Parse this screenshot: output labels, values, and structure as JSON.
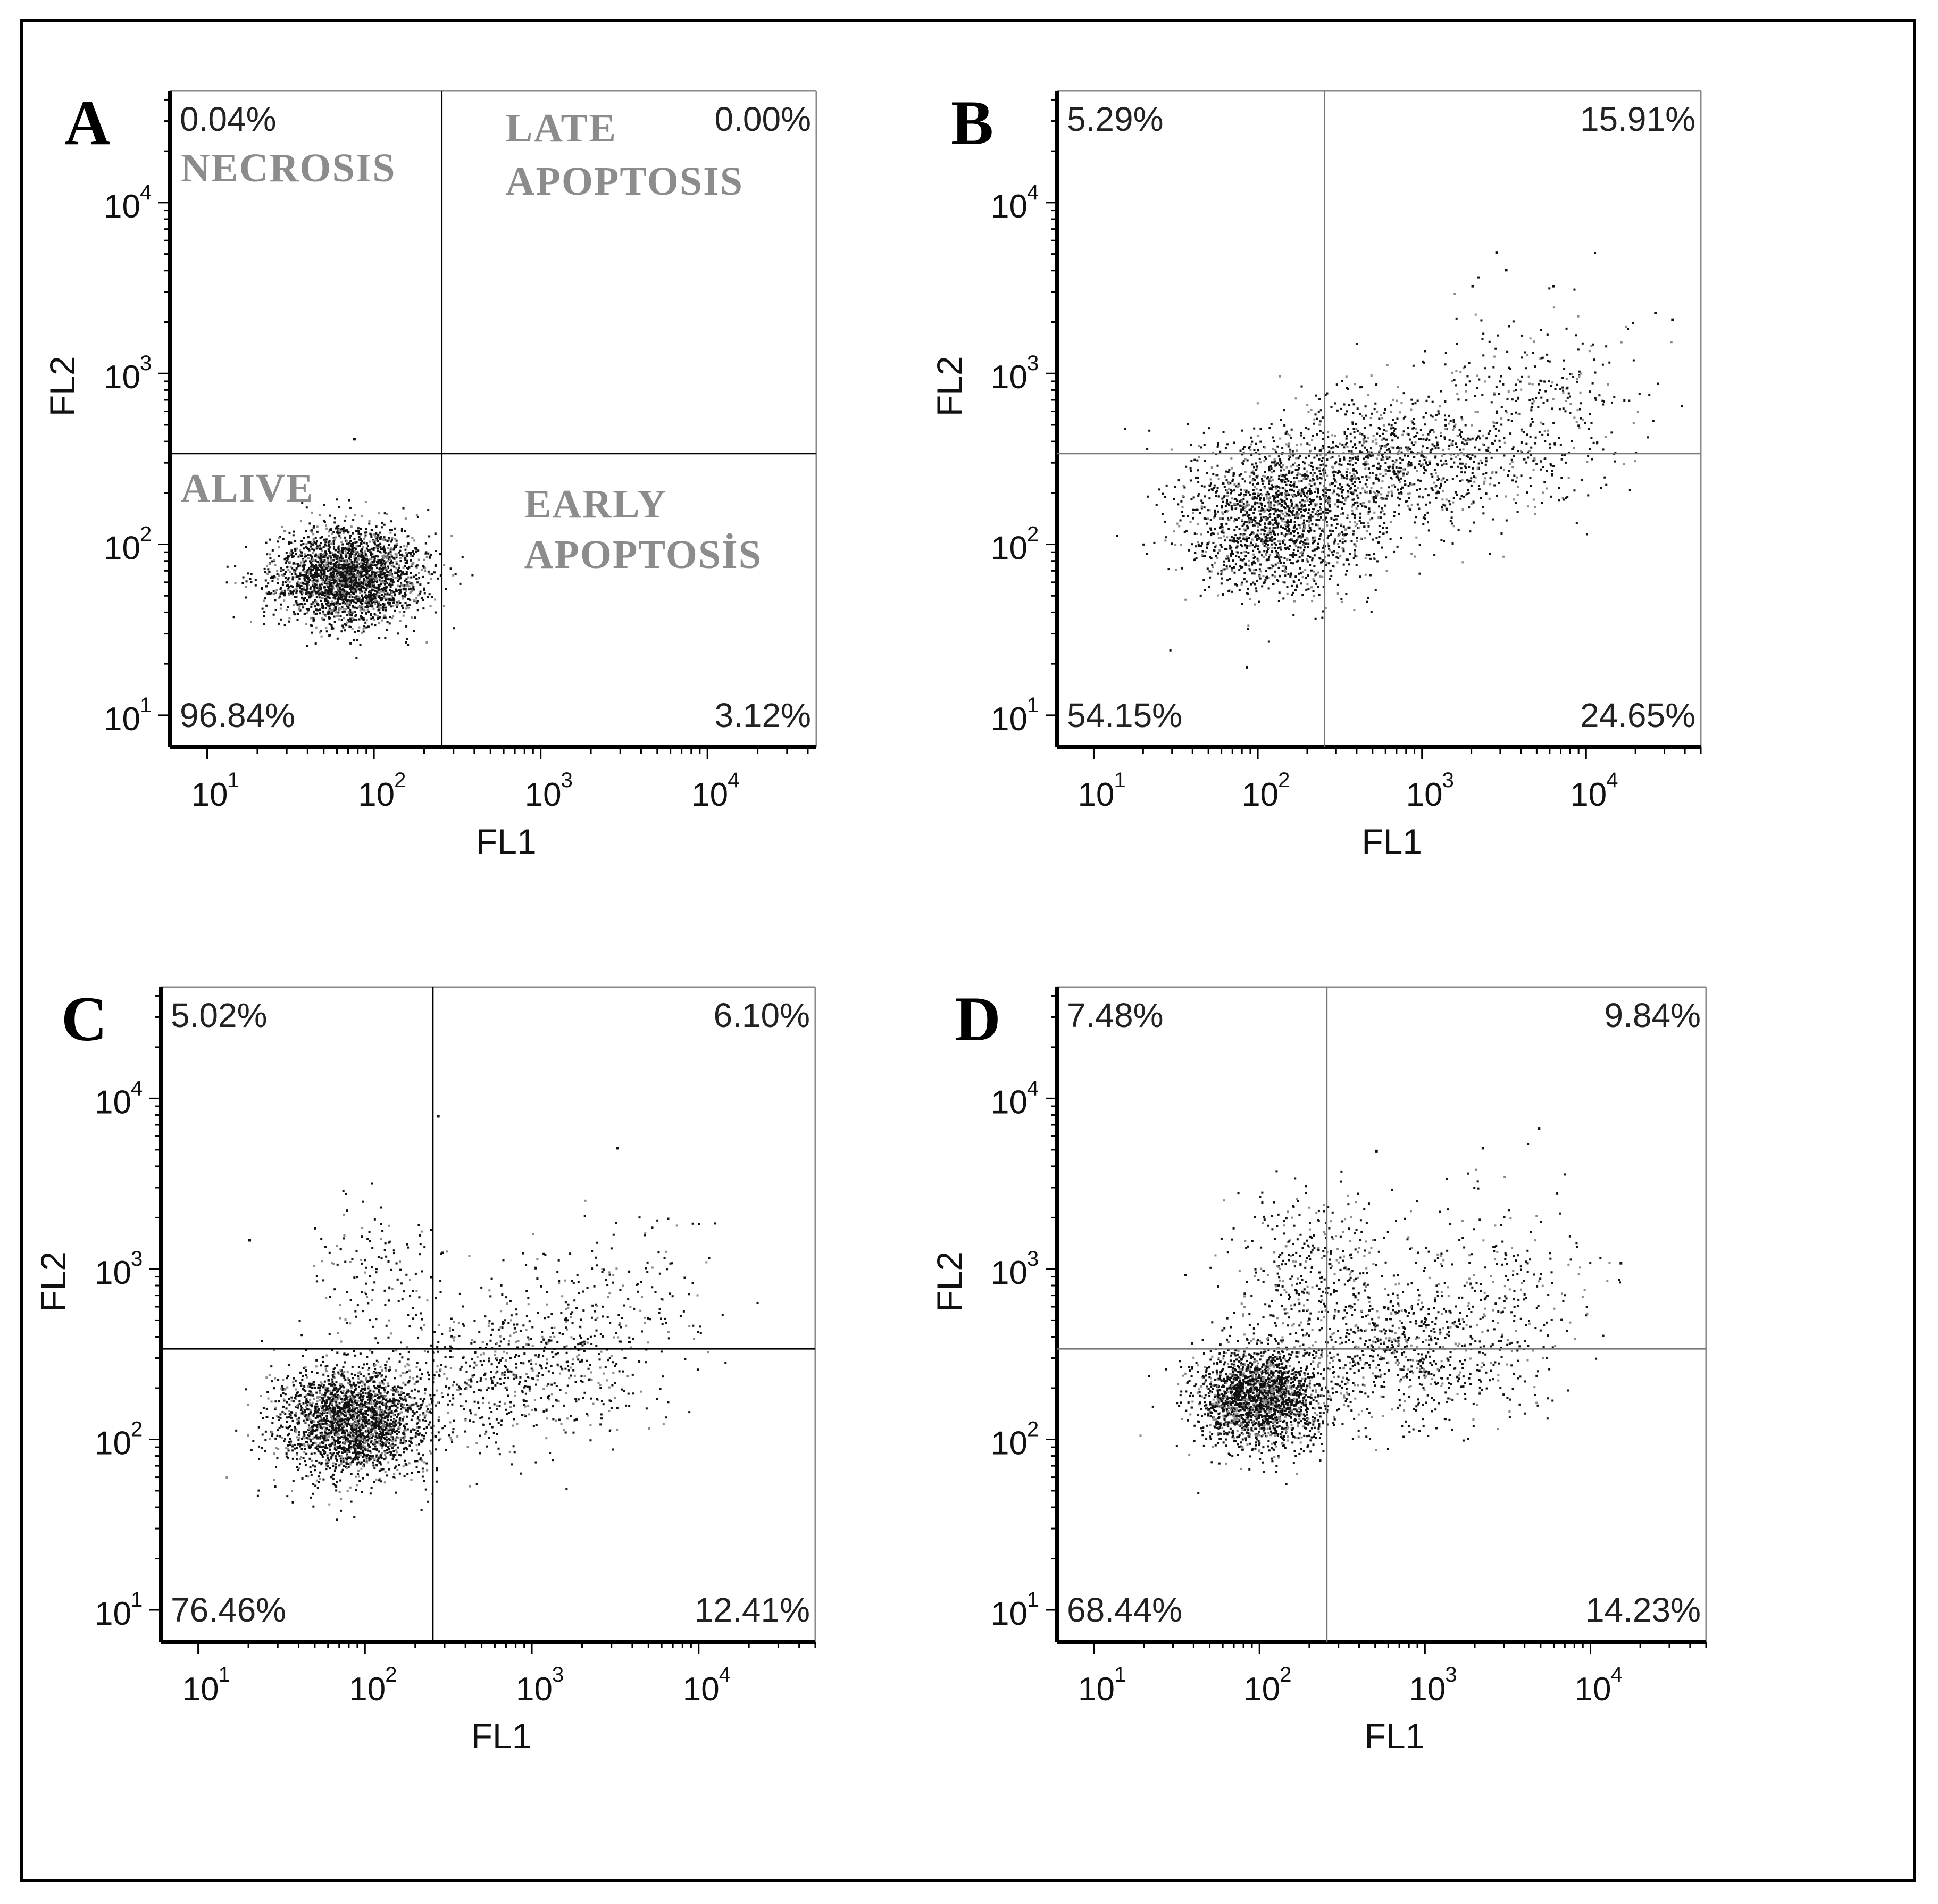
{
  "figure": {
    "panels": [
      {
        "id": "A",
        "letter": "A",
        "chart_data": {
          "type": "scatter",
          "title": "",
          "xlabel": "FL1",
          "ylabel": "FL2",
          "x_scale": "log",
          "y_scale": "log",
          "xlim": [
            6,
            45000
          ],
          "ylim": [
            6.5,
            45000
          ],
          "x_ticks": [
            {
              "base": "10",
              "exp": "1"
            },
            {
              "base": "10",
              "exp": "2"
            },
            {
              "base": "10",
              "exp": "3"
            },
            {
              "base": "10",
              "exp": "4"
            }
          ],
          "y_ticks": [
            {
              "base": "10",
              "exp": "1"
            },
            {
              "base": "10",
              "exp": "2"
            },
            {
              "base": "10",
              "exp": "3"
            },
            {
              "base": "10",
              "exp": "4"
            }
          ],
          "gate_x": 255,
          "gate_y": 340,
          "gate_color": "#000000",
          "quadrant_percentages": {
            "upper_left": "0.04%",
            "upper_right": "0.00%",
            "lower_left": "96.84%",
            "lower_right": "3.12%"
          },
          "quadrant_labels": {
            "upper_left": "NECROSIS",
            "upper_right_line1": "LATE",
            "upper_right_line2": "APOPTOSIS",
            "lower_left": "ALIVE",
            "lower_right_line1": "EARLY",
            "lower_right_line2": "APOPTOSİS"
          },
          "population": {
            "count": 2600,
            "clusters": [
              {
                "cx": 70,
                "cy": 65,
                "sx": 0.22,
                "sy": 0.14,
                "weight": 1.0
              }
            ]
          },
          "outliers": [
            [
              75,
              420
            ]
          ]
        }
      },
      {
        "id": "B",
        "letter": "B",
        "chart_data": {
          "type": "scatter",
          "title": "",
          "xlabel": "FL1",
          "ylabel": "FL2",
          "x_scale": "log",
          "y_scale": "log",
          "xlim": [
            6,
            50000
          ],
          "ylim": [
            6.5,
            45000
          ],
          "x_ticks": [
            {
              "base": "10",
              "exp": "1"
            },
            {
              "base": "10",
              "exp": "2"
            },
            {
              "base": "10",
              "exp": "3"
            },
            {
              "base": "10",
              "exp": "4"
            }
          ],
          "y_ticks": [
            {
              "base": "10",
              "exp": "1"
            },
            {
              "base": "10",
              "exp": "2"
            },
            {
              "base": "10",
              "exp": "3"
            },
            {
              "base": "10",
              "exp": "4"
            }
          ],
          "gate_x": 255,
          "gate_y": 340,
          "gate_color": "#777777",
          "quadrant_percentages": {
            "upper_left": "5.29%",
            "upper_right": "15.91%",
            "lower_left": "54.15%",
            "lower_right": "24.65%"
          },
          "population": {
            "count": 3000,
            "clusters": [
              {
                "cx": 130,
                "cy": 140,
                "sx": 0.3,
                "sy": 0.22,
                "weight": 0.55
              },
              {
                "cx": 700,
                "cy": 300,
                "sx": 0.42,
                "sy": 0.2,
                "weight": 0.35
              },
              {
                "cx": 5000,
                "cy": 700,
                "sx": 0.35,
                "sy": 0.25,
                "weight": 0.1
              }
            ]
          },
          "outliers": [
            [
              2800,
              5200
            ],
            [
              3200,
              4100
            ],
            [
              2000,
              3300
            ],
            [
              6200,
              3300
            ],
            [
              33000,
              2100
            ],
            [
              26000,
              2300
            ]
          ]
        }
      },
      {
        "id": "C",
        "letter": "C",
        "chart_data": {
          "type": "scatter",
          "title": "",
          "xlabel": "FL1",
          "ylabel": "FL2",
          "x_scale": "log",
          "y_scale": "log",
          "xlim": [
            6,
            50000
          ],
          "ylim": [
            6.5,
            45000
          ],
          "x_ticks": [
            {
              "base": "10",
              "exp": "1"
            },
            {
              "base": "10",
              "exp": "2"
            },
            {
              "base": "10",
              "exp": "3"
            },
            {
              "base": "10",
              "exp": "4"
            }
          ],
          "y_ticks": [
            {
              "base": "10",
              "exp": "1"
            },
            {
              "base": "10",
              "exp": "2"
            },
            {
              "base": "10",
              "exp": "3"
            },
            {
              "base": "10",
              "exp": "4"
            }
          ],
          "gate_x": 255,
          "gate_y": 340,
          "gate_color": "#000000",
          "quadrant_percentages": {
            "upper_left": "5.02%",
            "upper_right": "6.10%",
            "lower_left": "76.46%",
            "lower_right": "12.41%"
          },
          "population": {
            "count": 3400,
            "clusters": [
              {
                "cx": 85,
                "cy": 130,
                "sx": 0.22,
                "sy": 0.16,
                "weight": 0.72
              },
              {
                "cx": 800,
                "cy": 260,
                "sx": 0.38,
                "sy": 0.22,
                "weight": 0.18
              },
              {
                "cx": 110,
                "cy": 900,
                "sx": 0.2,
                "sy": 0.25,
                "weight": 0.05
              },
              {
                "cx": 3000,
                "cy": 700,
                "sx": 0.3,
                "sy": 0.25,
                "weight": 0.05
              }
            ]
          },
          "outliers": [
            [
              270,
              8000
            ],
            [
              3200,
              5200
            ],
            [
              20,
              1500
            ]
          ]
        }
      },
      {
        "id": "D",
        "letter": "D",
        "chart_data": {
          "type": "scatter",
          "title": "",
          "xlabel": "FL1",
          "ylabel": "FL2",
          "x_scale": "log",
          "y_scale": "log",
          "xlim": [
            6,
            50000
          ],
          "ylim": [
            6.5,
            45000
          ],
          "x_ticks": [
            {
              "base": "10",
              "exp": "1"
            },
            {
              "base": "10",
              "exp": "2"
            },
            {
              "base": "10",
              "exp": "3"
            },
            {
              "base": "10",
              "exp": "4"
            }
          ],
          "y_ticks": [
            {
              "base": "10",
              "exp": "1"
            },
            {
              "base": "10",
              "exp": "2"
            },
            {
              "base": "10",
              "exp": "3"
            },
            {
              "base": "10",
              "exp": "4"
            }
          ],
          "gate_x": 255,
          "gate_y": 340,
          "gate_color": "#777777",
          "quadrant_percentages": {
            "upper_left": "7.48%",
            "upper_right": "9.84%",
            "lower_left": "68.44%",
            "lower_right": "14.23%"
          },
          "population": {
            "count": 3400,
            "clusters": [
              {
                "cx": 100,
                "cy": 180,
                "sx": 0.2,
                "sy": 0.15,
                "weight": 0.62
              },
              {
                "cx": 700,
                "cy": 330,
                "sx": 0.38,
                "sy": 0.22,
                "weight": 0.22
              },
              {
                "cx": 200,
                "cy": 1000,
                "sx": 0.25,
                "sy": 0.25,
                "weight": 0.1
              },
              {
                "cx": 3000,
                "cy": 800,
                "sx": 0.3,
                "sy": 0.25,
                "weight": 0.06
              }
            ]
          },
          "outliers": [
            [
              4800,
              6800
            ],
            [
              2200,
              5200
            ],
            [
              500,
              5000
            ],
            [
              15000,
              1100
            ]
          ]
        }
      }
    ]
  }
}
